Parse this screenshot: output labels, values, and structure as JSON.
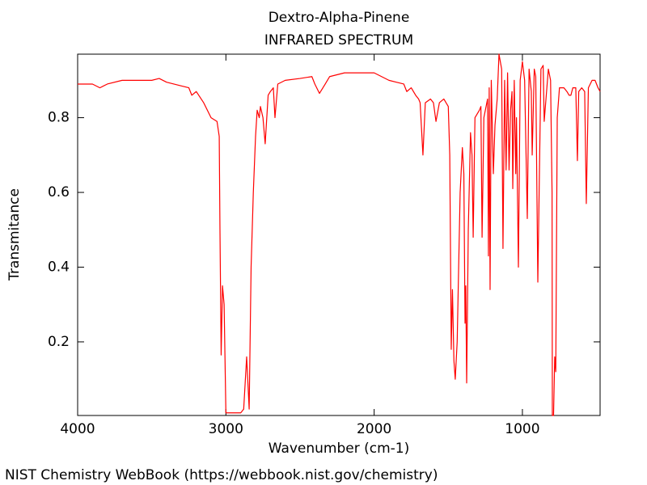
{
  "chart_data": {
    "type": "line",
    "title": "Dextro-Alpha-Pinene",
    "subtitle": "INFRARED SPECTRUM",
    "xlabel": "Wavenumber (cm-1)",
    "ylabel": "Transmitance",
    "color": "#ff0000",
    "xlim": [
      4000,
      476
    ],
    "ylim": [
      0.003,
      0.97
    ],
    "xticks": [
      4000,
      3000,
      2000,
      1000
    ],
    "yticks": [
      0.2,
      0.4,
      0.6,
      0.8
    ],
    "x": [
      4000,
      3900,
      3850,
      3800,
      3700,
      3500,
      3450,
      3400,
      3300,
      3250,
      3230,
      3200,
      3150,
      3100,
      3060,
      3045,
      3040,
      3032,
      3023,
      3012,
      3000,
      2900,
      2880,
      2860,
      2843,
      2830,
      2815,
      2800,
      2789,
      2775,
      2767,
      2750,
      2735,
      2715,
      2700,
      2680,
      2669,
      2650,
      2600,
      2500,
      2420,
      2400,
      2369,
      2330,
      2300,
      2200,
      2100,
      2000,
      1950,
      1900,
      1850,
      1800,
      1780,
      1750,
      1720,
      1700,
      1690,
      1671,
      1655,
      1620,
      1600,
      1583,
      1560,
      1530,
      1500,
      1490,
      1480,
      1472,
      1462,
      1453,
      1440,
      1420,
      1405,
      1395,
      1387,
      1382,
      1376,
      1365,
      1350,
      1340,
      1332,
      1320,
      1290,
      1280,
      1272,
      1260,
      1235,
      1229,
      1224,
      1218,
      1210,
      1196,
      1185,
      1170,
      1158,
      1140,
      1131,
      1120,
      1110,
      1100,
      1090,
      1080,
      1070,
      1065,
      1055,
      1045,
      1040,
      1027,
      1015,
      1000,
      985,
      967,
      955,
      940,
      934,
      920,
      910,
      896,
      875,
      860,
      853,
      825,
      810,
      800,
      798,
      790,
      782,
      775,
      765,
      750,
      720,
      700,
      685,
      673,
      660,
      640,
      629,
      620,
      600,
      580,
      569,
      555,
      530,
      510,
      490,
      476
    ],
    "values": [
      0.89,
      0.89,
      0.88,
      0.89,
      0.9,
      0.9,
      0.905,
      0.895,
      0.885,
      0.88,
      0.86,
      0.87,
      0.84,
      0.8,
      0.79,
      0.75,
      0.5,
      0.165,
      0.35,
      0.3,
      0.01,
      0.01,
      0.02,
      0.16,
      0.02,
      0.4,
      0.6,
      0.75,
      0.82,
      0.8,
      0.83,
      0.8,
      0.73,
      0.86,
      0.87,
      0.88,
      0.8,
      0.89,
      0.9,
      0.905,
      0.91,
      0.89,
      0.865,
      0.89,
      0.91,
      0.92,
      0.92,
      0.92,
      0.91,
      0.9,
      0.895,
      0.89,
      0.87,
      0.88,
      0.86,
      0.85,
      0.84,
      0.7,
      0.84,
      0.85,
      0.84,
      0.79,
      0.84,
      0.85,
      0.83,
      0.7,
      0.18,
      0.34,
      0.15,
      0.1,
      0.2,
      0.6,
      0.72,
      0.65,
      0.25,
      0.35,
      0.09,
      0.5,
      0.76,
      0.7,
      0.48,
      0.8,
      0.82,
      0.83,
      0.48,
      0.8,
      0.85,
      0.43,
      0.88,
      0.34,
      0.9,
      0.65,
      0.78,
      0.85,
      0.97,
      0.93,
      0.45,
      0.9,
      0.66,
      0.92,
      0.66,
      0.82,
      0.87,
      0.61,
      0.9,
      0.65,
      0.8,
      0.4,
      0.9,
      0.95,
      0.9,
      0.53,
      0.93,
      0.87,
      0.7,
      0.93,
      0.91,
      0.36,
      0.93,
      0.94,
      0.79,
      0.93,
      0.9,
      0.6,
      0.003,
      0.003,
      0.16,
      0.12,
      0.8,
      0.88,
      0.88,
      0.87,
      0.86,
      0.86,
      0.88,
      0.88,
      0.685,
      0.87,
      0.88,
      0.87,
      0.57,
      0.88,
      0.9,
      0.9,
      0.88,
      0.87
    ]
  },
  "footer": "NIST Chemistry WebBook (https://webbook.nist.gov/chemistry)"
}
